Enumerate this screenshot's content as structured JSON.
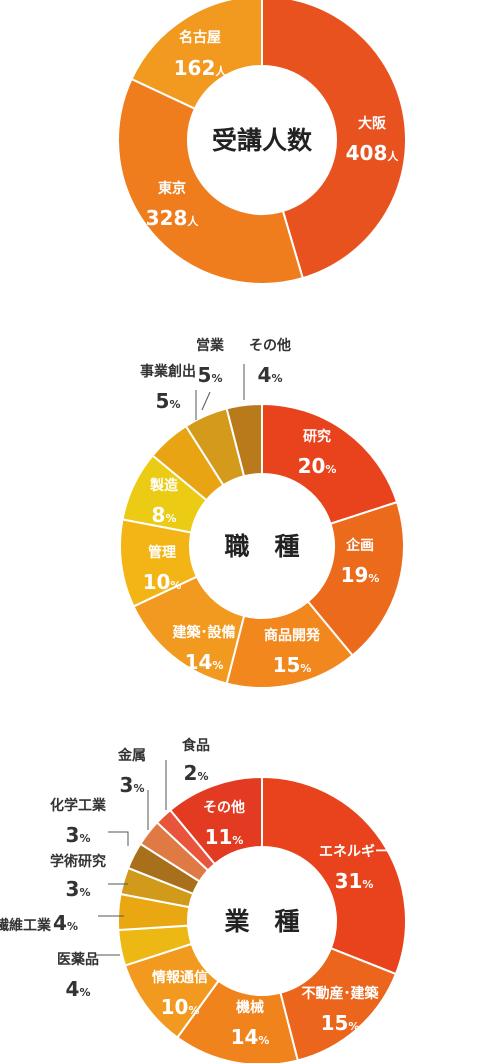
{
  "chart_data": [
    {
      "type": "pie",
      "title": "受講人数",
      "unit": "人",
      "slices": [
        {
          "label": "大阪",
          "value": 408,
          "color": "#e8521f",
          "label_color": "#ffffff"
        },
        {
          "label": "東京",
          "value": 328,
          "color": "#ef7d1e",
          "label_color": "#ffffff"
        },
        {
          "label": "名古屋",
          "value": 162,
          "color": "#f29a1f",
          "label_color": "#ffffff"
        }
      ]
    },
    {
      "type": "pie",
      "title": "職　種",
      "unit": "%",
      "slices": [
        {
          "label": "研究",
          "value": 20,
          "color": "#e8431c",
          "label_color": "#ffffff"
        },
        {
          "label": "企画",
          "value": 19,
          "color": "#ec6a1c",
          "label_color": "#ffffff"
        },
        {
          "label": "商品開発",
          "value": 15,
          "color": "#f1871d",
          "label_color": "#ffffff"
        },
        {
          "label": "建築･設備",
          "value": 14,
          "color": "#f29a1f",
          "label_color": "#ffffff"
        },
        {
          "label": "管理",
          "value": 10,
          "color": "#f2b515",
          "label_color": "#ffffff"
        },
        {
          "label": "製造",
          "value": 8,
          "color": "#eccb14",
          "label_color": "#ffffff"
        },
        {
          "label": "事業創出",
          "value": 5,
          "color": "#e8a412",
          "label_color": "#333333"
        },
        {
          "label": "営業",
          "value": 5,
          "color": "#d49a1c",
          "label_color": "#333333"
        },
        {
          "label": "その他",
          "value": 4,
          "color": "#b97a1c",
          "label_color": "#333333"
        }
      ]
    },
    {
      "type": "pie",
      "title": "業　種",
      "unit": "%",
      "slices": [
        {
          "label": "エネルギー",
          "value": 31,
          "color": "#e8431c",
          "label_color": "#ffffff"
        },
        {
          "label": "不動産･建築",
          "value": 15,
          "color": "#ec651c",
          "label_color": "#ffffff"
        },
        {
          "label": "機械",
          "value": 14,
          "color": "#f1831d",
          "label_color": "#ffffff"
        },
        {
          "label": "情報通信",
          "value": 10,
          "color": "#f29a1f",
          "label_color": "#ffffff"
        },
        {
          "label": "医薬品",
          "value": 4,
          "color": "#eeb814",
          "label_color": "#333333"
        },
        {
          "label": "繊維工業",
          "value": 4,
          "color": "#e9a812",
          "label_color": "#333333"
        },
        {
          "label": "学術研究",
          "value": 3,
          "color": "#d19a1a",
          "label_color": "#333333"
        },
        {
          "label": "化学工業",
          "value": 3,
          "color": "#a9701c",
          "label_color": "#333333"
        },
        {
          "label": "金属",
          "value": 3,
          "color": "#e07a44",
          "label_color": "#333333"
        },
        {
          "label": "食品",
          "value": 2,
          "color": "#e9543c",
          "label_color": "#333333"
        },
        {
          "label": "その他",
          "value": 11,
          "color": "#e33a22",
          "label_color": "#ffffff"
        }
      ]
    }
  ]
}
